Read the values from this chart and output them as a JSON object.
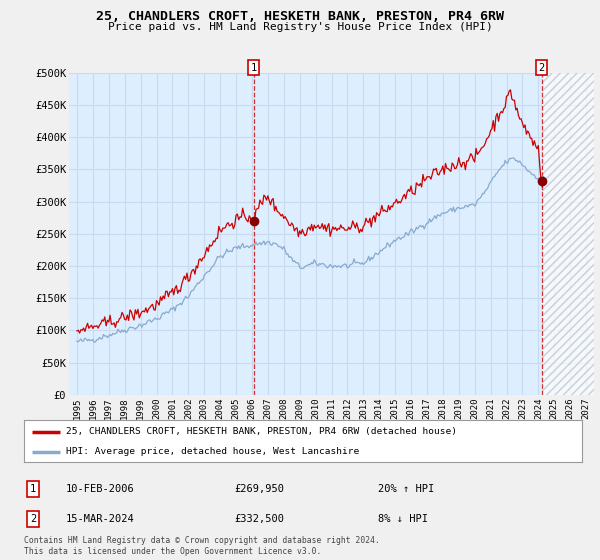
{
  "title": "25, CHANDLERS CROFT, HESKETH BANK, PRESTON, PR4 6RW",
  "subtitle": "Price paid vs. HM Land Registry's House Price Index (HPI)",
  "background_color": "#f0f0f0",
  "plot_bg_color": "#ddeeff",
  "grid_color": "#c8daf0",
  "red_color": "#cc0000",
  "blue_color": "#88aacc",
  "ylim": [
    0,
    500000
  ],
  "yticks": [
    0,
    50000,
    100000,
    150000,
    200000,
    250000,
    300000,
    350000,
    400000,
    450000,
    500000
  ],
  "ytick_labels": [
    "£0",
    "£50K",
    "£100K",
    "£150K",
    "£200K",
    "£250K",
    "£300K",
    "£350K",
    "£400K",
    "£450K",
    "£500K"
  ],
  "marker1_x": 2006.1,
  "marker1_date": "10-FEB-2006",
  "marker1_price": "£269,950",
  "marker1_hpi": "20% ↑ HPI",
  "marker1_price_val": 269950,
  "marker2_x": 2024.2,
  "marker2_date": "15-MAR-2024",
  "marker2_price": "£332,500",
  "marker2_hpi": "8% ↓ HPI",
  "marker2_price_val": 332500,
  "legend_label_red": "25, CHANDLERS CROFT, HESKETH BANK, PRESTON, PR4 6RW (detached house)",
  "legend_label_blue": "HPI: Average price, detached house, West Lancashire",
  "footer": "Contains HM Land Registry data © Crown copyright and database right 2024.\nThis data is licensed under the Open Government Licence v3.0.",
  "xtick_years": [
    1995,
    1996,
    1997,
    1998,
    1999,
    2000,
    2001,
    2002,
    2003,
    2004,
    2005,
    2006,
    2007,
    2008,
    2009,
    2010,
    2011,
    2012,
    2013,
    2014,
    2015,
    2016,
    2017,
    2018,
    2019,
    2020,
    2021,
    2022,
    2023,
    2024,
    2025,
    2026,
    2027
  ],
  "hatch_start": 2024.25
}
